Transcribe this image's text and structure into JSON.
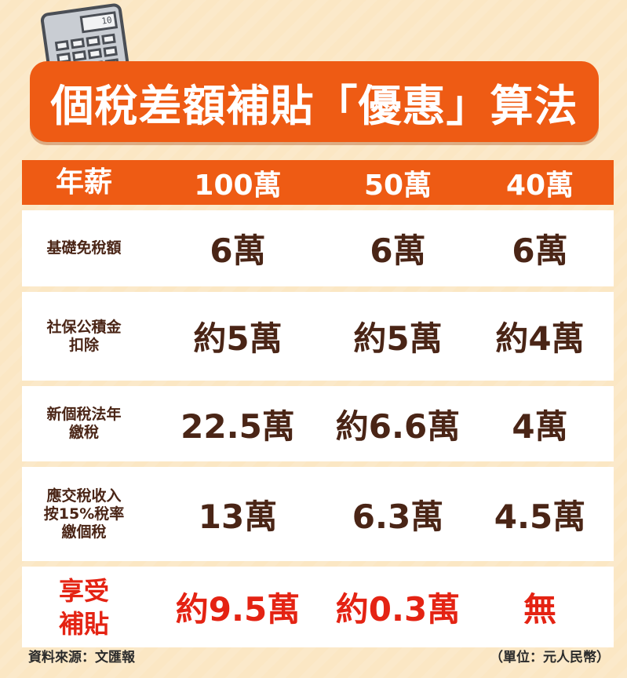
{
  "title": "個稅差額補貼「優惠」算法",
  "calculator_display": "10",
  "table": {
    "header": {
      "label": "年薪",
      "columns": [
        "100萬",
        "50萬",
        "40萬"
      ]
    },
    "rows": [
      {
        "label_lines": [
          "基礎免稅額"
        ],
        "values": [
          "6萬",
          "6萬",
          "6萬"
        ]
      },
      {
        "label_lines": [
          "社保公積金",
          "扣除"
        ],
        "values": [
          "約5萬",
          "約5萬",
          "約4萬"
        ]
      },
      {
        "label_lines": [
          "新個稅法年",
          "繳稅"
        ],
        "values": [
          "22.5萬",
          "約6.6萬",
          "4萬"
        ]
      },
      {
        "label_lines": [
          "應交稅收入",
          "按15%稅率",
          "繳個稅"
        ],
        "values": [
          "13萬",
          "6.3萬",
          "4.5萬"
        ]
      },
      {
        "label_lines": [
          "享受",
          "補貼"
        ],
        "values": [
          "約9.5萬",
          "約0.3萬",
          "無"
        ]
      }
    ]
  },
  "footer": {
    "source": "資料來源：文匯報",
    "unit": "（單位：元人民幣）"
  },
  "colors": {
    "background": "#fbe7c4",
    "banner": "#ee5b14",
    "text_dark": "#4a2516",
    "highlight_red": "#e42313"
  },
  "icons": [
    "calculator-icon"
  ]
}
